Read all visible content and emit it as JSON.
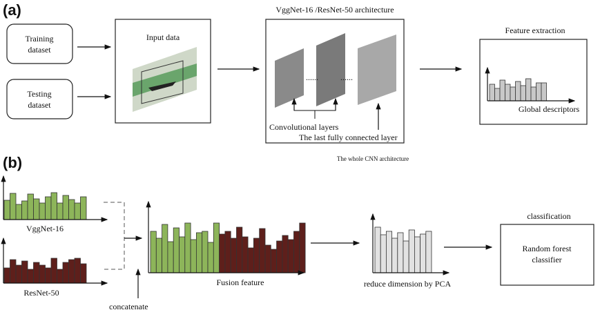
{
  "panel_a": {
    "label": "(a)",
    "training": [
      "Training",
      "dataset"
    ],
    "testing": [
      "Testing",
      "dataset"
    ],
    "input_title": "Input data",
    "cnn_title": "VggNet-16 /ResNet-50 architecture",
    "conv_label": "Convolutional layers",
    "fc_label": "The last fully connected layer",
    "cnn_caption": "The whole CNN architecture",
    "feature_title": "Feature extraction",
    "descriptor_label": "Global descriptors"
  },
  "panel_b": {
    "label": "(b)",
    "vgg_label": "VggNet-16",
    "resnet_label": "ResNet-50",
    "concat_label": "concatenate",
    "fusion_label": "Fusion feature",
    "pca_label": "reduce dimension by PCA",
    "class_title": "classification",
    "classifier": [
      "Random forest",
      "classifier"
    ]
  }
}
